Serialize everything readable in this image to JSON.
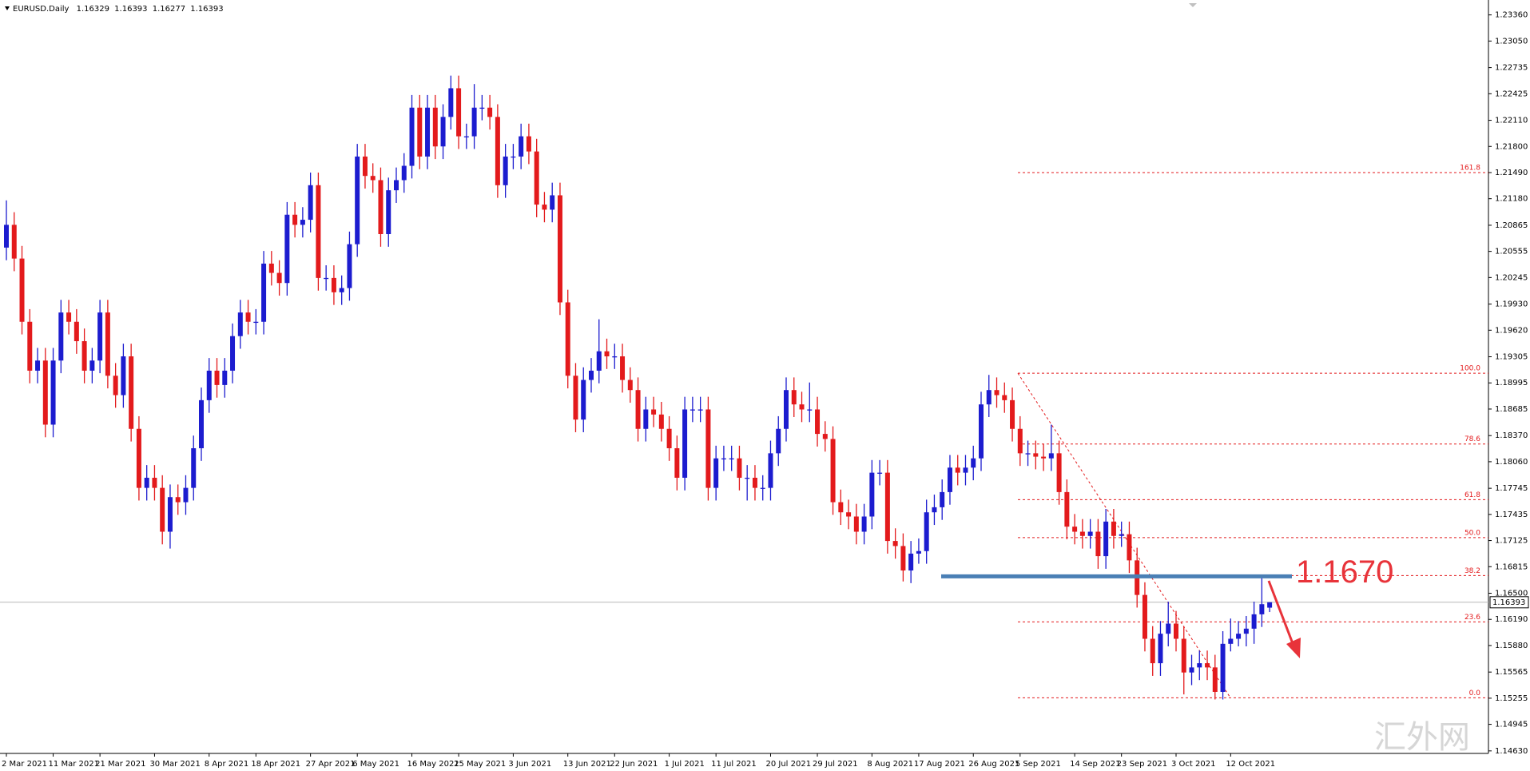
{
  "chart_data": {
    "type": "candlestick",
    "title": "EURUSD.Daily",
    "colors": {
      "bull": "#1c1ccf",
      "bear": "#e31a1c",
      "fib": "#e31a1c",
      "level": "#4a7fb5",
      "arrow": "#e8333a",
      "price_line": "#b8b8b8"
    },
    "watermark": "汇外网",
    "ylim": [
      1.146,
      1.2348
    ],
    "yticks": [
      {
        "value": 1.2336,
        "label": "1.23360"
      },
      {
        "value": 1.2305,
        "label": "1.23050"
      },
      1.22735,
      1.22425,
      {
        "value": 1.2211,
        "label": "1.22110"
      },
      {
        "value": 1.218,
        "label": "1.21800"
      },
      {
        "value": 1.2149,
        "label": "1.21490"
      },
      {
        "value": 1.2118,
        "label": "1.21180"
      },
      1.20865,
      1.20555,
      1.20245,
      {
        "value": 1.1993,
        "label": "1.19930"
      },
      {
        "value": 1.1962,
        "label": "1.19620"
      },
      1.19305,
      1.18995,
      1.18685,
      {
        "value": 1.1837,
        "label": "1.18370"
      },
      {
        "value": 1.1806,
        "label": "1.18060"
      },
      1.17745,
      1.17435,
      1.17125,
      1.16815,
      {
        "value": 1.165,
        "label": "1.16500"
      },
      {
        "value": 1.1619,
        "label": "1.16190"
      },
      {
        "value": 1.1588,
        "label": "1.15880"
      },
      1.15565,
      1.15255,
      1.14945,
      {
        "value": 1.1463,
        "label": "1.14630"
      }
    ],
    "categories": [
      "2 Mar 2021",
      null,
      null,
      null,
      null,
      null,
      "11 Mar 2021",
      null,
      null,
      null,
      null,
      null,
      "21 Mar 2021",
      null,
      null,
      null,
      null,
      null,
      null,
      "30 Mar 2021",
      null,
      null,
      null,
      null,
      null,
      null,
      "8 Apr 2021",
      null,
      null,
      null,
      null,
      null,
      "18 Apr 2021",
      null,
      null,
      null,
      null,
      null,
      null,
      "27 Apr 2021",
      null,
      null,
      null,
      null,
      null,
      "6 May 2021",
      null,
      null,
      null,
      null,
      null,
      null,
      "16 May 2021",
      null,
      null,
      null,
      null,
      null,
      "25 May 2021",
      null,
      null,
      null,
      null,
      null,
      null,
      "3 Jun 2021",
      null,
      null,
      null,
      null,
      null,
      null,
      "13 Jun 2021",
      null,
      null,
      null,
      null,
      null,
      "22 Jun 2021",
      null,
      null,
      null,
      null,
      null,
      null,
      "1 Jul 2021",
      null,
      null,
      null,
      null,
      null,
      "11 Jul 2021",
      null,
      null,
      null,
      null,
      null,
      null,
      "20 Jul 2021",
      null,
      null,
      null,
      null,
      null,
      "29 Jul 2021",
      null,
      null,
      null,
      null,
      null,
      null,
      "8 Aug 2021",
      null,
      null,
      null,
      null,
      null,
      "17 Aug 2021",
      null,
      null,
      null,
      null,
      null,
      null,
      "26 Aug 2021",
      null,
      null,
      null,
      null,
      null,
      "5 Sep 2021",
      null,
      null,
      null,
      null,
      null,
      null,
      "14 Sep 2021",
      null,
      null,
      null,
      null,
      null,
      "23 Sep 2021",
      null,
      null,
      null,
      null,
      null,
      null,
      "3 Oct 2021",
      null,
      null,
      null,
      null,
      null,
      null,
      "12 Oct 2021",
      null,
      null,
      null,
      null,
      null
    ],
    "candles": [
      [
        1.206,
        1.2116,
        1.2045,
        1.2087
      ],
      [
        1.2087,
        1.2102,
        1.2032,
        1.2047
      ],
      [
        1.2047,
        1.2062,
        1.1957,
        1.1972
      ],
      [
        1.1972,
        1.1987,
        1.1899,
        1.1914
      ],
      [
        1.1914,
        1.1941,
        1.1899,
        1.1926
      ],
      [
        1.1926,
        1.1941,
        1.1835,
        1.185
      ],
      [
        1.185,
        1.1941,
        1.1835,
        1.1926
      ],
      [
        1.1926,
        1.1998,
        1.1911,
        1.1983
      ],
      [
        1.1983,
        1.1998,
        1.1957,
        1.1972
      ],
      [
        1.1972,
        1.1987,
        1.1934,
        1.1949
      ],
      [
        1.1949,
        1.1964,
        1.1899,
        1.1914
      ],
      [
        1.1914,
        1.1941,
        1.1899,
        1.1926
      ],
      [
        1.1926,
        1.1998,
        1.1911,
        1.1983
      ],
      [
        1.1983,
        1.1998,
        1.1893,
        1.1908
      ],
      [
        1.1908,
        1.1923,
        1.187,
        1.1885
      ],
      [
        1.1885,
        1.1946,
        1.187,
        1.1931
      ],
      [
        1.1931,
        1.1946,
        1.183,
        1.1845
      ],
      [
        1.1845,
        1.186,
        1.176,
        1.1775
      ],
      [
        1.1775,
        1.1802,
        1.176,
        1.1787
      ],
      [
        1.1787,
        1.1802,
        1.176,
        1.1775
      ],
      [
        1.1775,
        1.179,
        1.1708,
        1.1723
      ],
      [
        1.1723,
        1.1779,
        1.1703,
        1.1764
      ],
      [
        1.1764,
        1.1779,
        1.1743,
        1.1758
      ],
      [
        1.1758,
        1.179,
        1.1743,
        1.1775
      ],
      [
        1.1775,
        1.1837,
        1.176,
        1.1822
      ],
      [
        1.1822,
        1.1894,
        1.1807,
        1.1879
      ],
      [
        1.1879,
        1.1929,
        1.1864,
        1.1914
      ],
      [
        1.1914,
        1.1929,
        1.1882,
        1.1897
      ],
      [
        1.1897,
        1.1929,
        1.1882,
        1.1914
      ],
      [
        1.1914,
        1.197,
        1.1899,
        1.1955
      ],
      [
        1.1955,
        1.1998,
        1.194,
        1.1983
      ],
      [
        1.1983,
        1.1998,
        1.1957,
        1.1972
      ],
      [
        1.1972,
        1.1987,
        1.1957,
        1.1972
      ],
      [
        1.1972,
        1.2056,
        1.1957,
        1.2041
      ],
      [
        1.2041,
        1.2056,
        1.2015,
        1.203
      ],
      [
        1.203,
        1.2045,
        1.2003,
        1.2018
      ],
      [
        1.2018,
        1.2114,
        1.2003,
        1.2099
      ],
      [
        1.2099,
        1.2114,
        1.2072,
        1.2087
      ],
      [
        1.2087,
        1.2108,
        1.2072,
        1.2093
      ],
      [
        1.2093,
        1.2149,
        1.2078,
        1.2134
      ],
      [
        1.2134,
        1.2149,
        1.2009,
        1.2024
      ],
      [
        1.2024,
        1.2039,
        1.2009,
        1.2024
      ],
      [
        1.2024,
        1.2039,
        1.1992,
        1.2007
      ],
      [
        1.2007,
        1.2027,
        1.1992,
        1.2012
      ],
      [
        1.2012,
        1.2079,
        1.1997,
        1.2064
      ],
      [
        1.2064,
        1.2183,
        1.2049,
        1.2168
      ],
      [
        1.2168,
        1.2183,
        1.213,
        1.2145
      ],
      [
        1.2145,
        1.216,
        1.2125,
        1.214
      ],
      [
        1.214,
        1.2155,
        1.2061,
        1.2076
      ],
      [
        1.2076,
        1.2143,
        1.2061,
        1.2128
      ],
      [
        1.2128,
        1.2155,
        1.2113,
        1.214
      ],
      [
        1.214,
        1.2172,
        1.2125,
        1.2157
      ],
      [
        1.2157,
        1.2241,
        1.2142,
        1.2226
      ],
      [
        1.2226,
        1.2241,
        1.2153,
        1.2168
      ],
      [
        1.2168,
        1.2241,
        1.2153,
        1.2226
      ],
      [
        1.2226,
        1.2241,
        1.2165,
        1.218
      ],
      [
        1.218,
        1.223,
        1.2165,
        1.2215
      ],
      [
        1.2215,
        1.2264,
        1.22,
        1.2249
      ],
      [
        1.2249,
        1.2264,
        1.2177,
        1.2192
      ],
      [
        1.2192,
        1.2207,
        1.2177,
        1.2192
      ],
      [
        1.2192,
        1.2254,
        1.2177,
        1.2226
      ],
      [
        1.2226,
        1.2241,
        1.2211,
        1.2226
      ],
      [
        1.2226,
        1.2241,
        1.22,
        1.2215
      ],
      [
        1.2215,
        1.223,
        1.2119,
        1.2134
      ],
      [
        1.2134,
        1.2183,
        1.2119,
        1.2168
      ],
      [
        1.2168,
        1.2183,
        1.2153,
        1.2168
      ],
      [
        1.2168,
        1.2207,
        1.2153,
        1.2192
      ],
      [
        1.2192,
        1.2207,
        1.2159,
        1.2174
      ],
      [
        1.2174,
        1.2189,
        1.2096,
        1.2111
      ],
      [
        1.2111,
        1.2126,
        1.209,
        1.2105
      ],
      [
        1.2105,
        1.2137,
        1.209,
        1.2122
      ],
      [
        1.2122,
        1.2137,
        1.198,
        1.1995
      ],
      [
        1.1995,
        1.201,
        1.1893,
        1.1908
      ],
      [
        1.1908,
        1.1923,
        1.1841,
        1.1856
      ],
      [
        1.1856,
        1.1918,
        1.1841,
        1.1903
      ],
      [
        1.1903,
        1.1929,
        1.1888,
        1.1914
      ],
      [
        1.1914,
        1.1975,
        1.1899,
        1.1937
      ],
      [
        1.1937,
        1.1952,
        1.1916,
        1.1931
      ],
      [
        1.1931,
        1.1946,
        1.1916,
        1.1931
      ],
      [
        1.1931,
        1.1946,
        1.1888,
        1.1903
      ],
      [
        1.1903,
        1.1918,
        1.1876,
        1.1891
      ],
      [
        1.1891,
        1.1906,
        1.183,
        1.1845
      ],
      [
        1.1845,
        1.1883,
        1.183,
        1.1868
      ],
      [
        1.1868,
        1.1883,
        1.1847,
        1.1862
      ],
      [
        1.1862,
        1.1877,
        1.183,
        1.1845
      ],
      [
        1.1845,
        1.186,
        1.1807,
        1.1822
      ],
      [
        1.1822,
        1.1837,
        1.1772,
        1.1787
      ],
      [
        1.1787,
        1.1883,
        1.1772,
        1.1868
      ],
      [
        1.1868,
        1.1883,
        1.1853,
        1.1868
      ],
      [
        1.1868,
        1.1883,
        1.1853,
        1.1868
      ],
      [
        1.1868,
        1.1883,
        1.176,
        1.1775
      ],
      [
        1.1775,
        1.1825,
        1.176,
        1.181
      ],
      [
        1.181,
        1.1825,
        1.1795,
        1.181
      ],
      [
        1.181,
        1.1825,
        1.1795,
        1.181
      ],
      [
        1.181,
        1.1825,
        1.1772,
        1.1787
      ],
      [
        1.1787,
        1.1802,
        1.176,
        1.1787
      ],
      [
        1.1787,
        1.1802,
        1.176,
        1.1775
      ],
      [
        1.1775,
        1.179,
        1.176,
        1.1775
      ],
      [
        1.1775,
        1.1831,
        1.176,
        1.1816
      ],
      [
        1.1816,
        1.186,
        1.1801,
        1.1845
      ],
      [
        1.1845,
        1.1906,
        1.183,
        1.1891
      ],
      [
        1.1891,
        1.1906,
        1.1859,
        1.1874
      ],
      [
        1.1874,
        1.1889,
        1.1853,
        1.1868
      ],
      [
        1.1868,
        1.19,
        1.1853,
        1.1868
      ],
      [
        1.1868,
        1.1883,
        1.1824,
        1.1839
      ],
      [
        1.1839,
        1.1854,
        1.1818,
        1.1833
      ],
      [
        1.1833,
        1.1848,
        1.1743,
        1.1758
      ],
      [
        1.1758,
        1.1773,
        1.1731,
        1.1746
      ],
      [
        1.1746,
        1.1761,
        1.1726,
        1.1741
      ],
      [
        1.1741,
        1.1756,
        1.1708,
        1.1723
      ],
      [
        1.1723,
        1.1756,
        1.1708,
        1.1741
      ],
      [
        1.1741,
        1.1808,
        1.1726,
        1.1793
      ],
      [
        1.1793,
        1.1808,
        1.1778,
        1.1793
      ],
      [
        1.1793,
        1.1808,
        1.1697,
        1.1712
      ],
      [
        1.1712,
        1.1727,
        1.1691,
        1.1706
      ],
      [
        1.1706,
        1.1721,
        1.1664,
        1.1677
      ],
      [
        1.1677,
        1.1712,
        1.1662,
        1.1697
      ],
      [
        1.1697,
        1.1715,
        1.1685,
        1.17
      ],
      [
        1.17,
        1.1761,
        1.1685,
        1.1746
      ],
      [
        1.1746,
        1.1767,
        1.1731,
        1.1752
      ],
      [
        1.1752,
        1.1785,
        1.1737,
        1.177
      ],
      [
        1.177,
        1.1814,
        1.1755,
        1.1799
      ],
      [
        1.1799,
        1.1814,
        1.1778,
        1.1793
      ],
      [
        1.1793,
        1.1814,
        1.1778,
        1.1799
      ],
      [
        1.1799,
        1.1825,
        1.1784,
        1.181
      ],
      [
        1.181,
        1.1889,
        1.1795,
        1.1874
      ],
      [
        1.1874,
        1.1909,
        1.1859,
        1.1891
      ],
      [
        1.1891,
        1.1906,
        1.187,
        1.1885
      ],
      [
        1.1885,
        1.19,
        1.1864,
        1.1879
      ],
      [
        1.1879,
        1.1894,
        1.183,
        1.1845
      ],
      [
        1.1845,
        1.186,
        1.1801,
        1.1816
      ],
      [
        1.1816,
        1.1831,
        1.1801,
        1.1816
      ],
      [
        1.1816,
        1.1831,
        1.1797,
        1.1812
      ],
      [
        1.1812,
        1.1827,
        1.1795,
        1.181
      ],
      [
        1.181,
        1.185,
        1.1795,
        1.1816
      ],
      [
        1.1816,
        1.1831,
        1.1755,
        1.177
      ],
      [
        1.177,
        1.1785,
        1.1714,
        1.1729
      ],
      [
        1.1729,
        1.1744,
        1.1708,
        1.1723
      ],
      [
        1.1723,
        1.1738,
        1.1703,
        1.1718
      ],
      [
        1.1718,
        1.1738,
        1.1703,
        1.1723
      ],
      [
        1.1723,
        1.1738,
        1.1679,
        1.1694
      ],
      [
        1.1694,
        1.175,
        1.1679,
        1.1735
      ],
      [
        1.1735,
        1.175,
        1.1703,
        1.1718
      ],
      [
        1.1718,
        1.1735,
        1.1705,
        1.172
      ],
      [
        1.172,
        1.1735,
        1.1674,
        1.1689
      ],
      [
        1.1689,
        1.1704,
        1.1633,
        1.1648
      ],
      [
        1.1648,
        1.1663,
        1.1581,
        1.1596
      ],
      [
        1.1596,
        1.1611,
        1.1552,
        1.1567
      ],
      [
        1.1567,
        1.1617,
        1.1552,
        1.1602
      ],
      [
        1.1602,
        1.164,
        1.1587,
        1.1614
      ],
      [
        1.1614,
        1.1629,
        1.1581,
        1.1596
      ],
      [
        1.1596,
        1.1611,
        1.153,
        1.1556
      ],
      [
        1.1556,
        1.1577,
        1.1541,
        1.1562
      ],
      [
        1.1562,
        1.1582,
        1.1547,
        1.1567
      ],
      [
        1.1567,
        1.1582,
        1.1547,
        1.1562
      ],
      [
        1.1562,
        1.1577,
        1.1524,
        1.1533
      ],
      [
        1.1533,
        1.1605,
        1.1524,
        1.159
      ],
      [
        1.159,
        1.162,
        1.1581,
        1.1596
      ],
      [
        1.1596,
        1.1617,
        1.1587,
        1.1602
      ],
      [
        1.1602,
        1.1623,
        1.1587,
        1.1608
      ],
      [
        1.1608,
        1.164,
        1.159,
        1.1625
      ],
      [
        1.1625,
        1.167,
        1.161,
        1.1637
      ],
      [
        1.16329,
        1.16393,
        1.16277,
        1.16393
      ]
    ],
    "fibonacci": {
      "high": 1.1911,
      "low": 1.1526,
      "levels": [
        {
          "label": "161.8",
          "price": 1.2149
        },
        {
          "label": "100.0",
          "price": 1.1911
        },
        {
          "label": "78.6",
          "price": 1.1827
        },
        {
          "label": "61.8",
          "price": 1.1761
        },
        {
          "label": "50.0",
          "price": 1.1716
        },
        {
          "label": "38.2",
          "price": 1.1671
        },
        {
          "label": "23.6",
          "price": 1.1616
        },
        {
          "label": "0.0",
          "price": 1.1526
        }
      ]
    },
    "level": {
      "text": "1.1670",
      "price": 1.167
    }
  }
}
